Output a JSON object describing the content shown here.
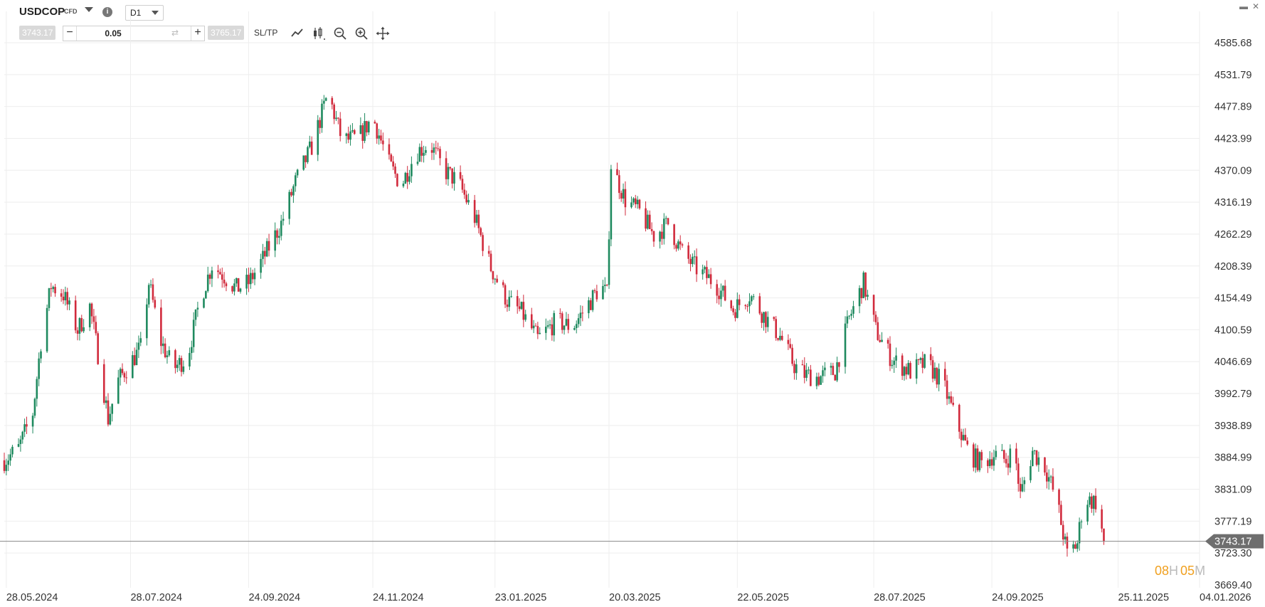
{
  "header": {
    "symbol": "USDCOP",
    "instrument_type": "CFD",
    "info_icon": "i",
    "timeframe": "D1",
    "window_controls": [
      "▬",
      "✕"
    ]
  },
  "toolbar": {
    "sell_price": "3743.17",
    "quantity": "0.05",
    "buy_price": "3765.17",
    "sltp_label": "SL/TP",
    "decrement": "−",
    "increment": "+",
    "swap": "⇄"
  },
  "colors": {
    "up": "#1f8a5f",
    "down": "#d12a3c",
    "grid": "#eeeeee",
    "price_line": "#888888",
    "price_tag_bg": "#6e6e6e",
    "timer_number": "#f0a020",
    "timer_unit": "#bbbbbb"
  },
  "timer": {
    "hours": "08",
    "hours_unit": "H",
    "minutes": "05",
    "minutes_unit": "M"
  },
  "chart_data": {
    "type": "candlestick",
    "timeframe": "D1",
    "y_ticks": [
      "4585.68",
      "4531.79",
      "4477.89",
      "4423.99",
      "4370.09",
      "4316.19",
      "4262.29",
      "4208.39",
      "4154.49",
      "4100.59",
      "4046.69",
      "3992.79",
      "3938.89",
      "3884.99",
      "3831.09",
      "3777.19",
      "3723.30",
      "3669.40"
    ],
    "ylim": [
      3669.4,
      4585.68
    ],
    "x_ticks": [
      "28.05.2024",
      "28.07.2024",
      "24.09.2024",
      "24.11.2024",
      "23.01.2025",
      "20.03.2025",
      "22.05.2025",
      "28.07.2025",
      "24.09.2025",
      "25.11.2025",
      "04.01.2026"
    ],
    "x_start": "2024-05-27",
    "x_end": "2026-01-04",
    "current_price": "3743.17",
    "anchors": [
      [
        "2024-05-27",
        3880
      ],
      [
        "2024-06-03",
        3900
      ],
      [
        "2024-06-10",
        3960
      ],
      [
        "2024-06-14",
        4080
      ],
      [
        "2024-06-19",
        4175
      ],
      [
        "2024-06-25",
        4160
      ],
      [
        "2024-07-02",
        4100
      ],
      [
        "2024-07-08",
        4140
      ],
      [
        "2024-07-13",
        4040
      ],
      [
        "2024-07-17",
        3950
      ],
      [
        "2024-07-22",
        4015
      ],
      [
        "2024-07-28",
        4045
      ],
      [
        "2024-08-02",
        4070
      ],
      [
        "2024-08-06",
        4180
      ],
      [
        "2024-08-12",
        4080
      ],
      [
        "2024-08-18",
        4035
      ],
      [
        "2024-08-25",
        4055
      ],
      [
        "2024-08-31",
        4150
      ],
      [
        "2024-09-06",
        4210
      ],
      [
        "2024-09-11",
        4195
      ],
      [
        "2024-09-18",
        4170
      ],
      [
        "2024-09-24",
        4180
      ],
      [
        "2024-10-01",
        4220
      ],
      [
        "2024-10-10",
        4280
      ],
      [
        "2024-10-17",
        4350
      ],
      [
        "2024-10-25",
        4410
      ],
      [
        "2024-11-02",
        4500
      ],
      [
        "2024-11-09",
        4420
      ],
      [
        "2024-11-17",
        4425
      ],
      [
        "2024-11-24",
        4460
      ],
      [
        "2024-12-02",
        4380
      ],
      [
        "2024-12-08",
        4345
      ],
      [
        "2024-12-15",
        4400
      ],
      [
        "2024-12-22",
        4415
      ],
      [
        "2024-12-29",
        4370
      ],
      [
        "2025-01-05",
        4350
      ],
      [
        "2025-01-13",
        4290
      ],
      [
        "2025-01-21",
        4205
      ],
      [
        "2025-01-29",
        4150
      ],
      [
        "2025-02-05",
        4130
      ],
      [
        "2025-02-13",
        4085
      ],
      [
        "2025-02-22",
        4115
      ],
      [
        "2025-03-02",
        4105
      ],
      [
        "2025-03-09",
        4140
      ],
      [
        "2025-03-16",
        4175
      ],
      [
        "2025-03-19",
        4160
      ],
      [
        "2025-03-21",
        4380
      ],
      [
        "2025-03-28",
        4320
      ],
      [
        "2025-04-04",
        4300
      ],
      [
        "2025-04-11",
        4260
      ],
      [
        "2025-04-18",
        4280
      ],
      [
        "2025-04-25",
        4230
      ],
      [
        "2025-05-03",
        4200
      ],
      [
        "2025-05-11",
        4180
      ],
      [
        "2025-05-20",
        4135
      ],
      [
        "2025-05-28",
        4160
      ],
      [
        "2025-06-05",
        4120
      ],
      [
        "2025-06-12",
        4090
      ],
      [
        "2025-06-19",
        4040
      ],
      [
        "2025-06-24",
        4025
      ],
      [
        "2025-07-01",
        4020
      ],
      [
        "2025-07-09",
        4030
      ],
      [
        "2025-07-16",
        4120
      ],
      [
        "2025-07-23",
        4180
      ],
      [
        "2025-07-29",
        4100
      ],
      [
        "2025-08-06",
        4050
      ],
      [
        "2025-08-15",
        4030
      ],
      [
        "2025-08-23",
        4045
      ],
      [
        "2025-08-31",
        4010
      ],
      [
        "2025-09-06",
        3950
      ],
      [
        "2025-09-13",
        3890
      ],
      [
        "2025-09-19",
        3875
      ],
      [
        "2025-09-25",
        3890
      ],
      [
        "2025-10-01",
        3880
      ],
      [
        "2025-10-05",
        3900
      ],
      [
        "2025-10-08",
        3820
      ],
      [
        "2025-10-14",
        3895
      ],
      [
        "2025-10-20",
        3870
      ],
      [
        "2025-10-26",
        3810
      ],
      [
        "2025-10-31",
        3720
      ],
      [
        "2025-11-05",
        3740
      ],
      [
        "2025-11-08",
        3815
      ],
      [
        "2025-11-14",
        3810
      ],
      [
        "2025-11-18",
        3745
      ]
    ]
  }
}
